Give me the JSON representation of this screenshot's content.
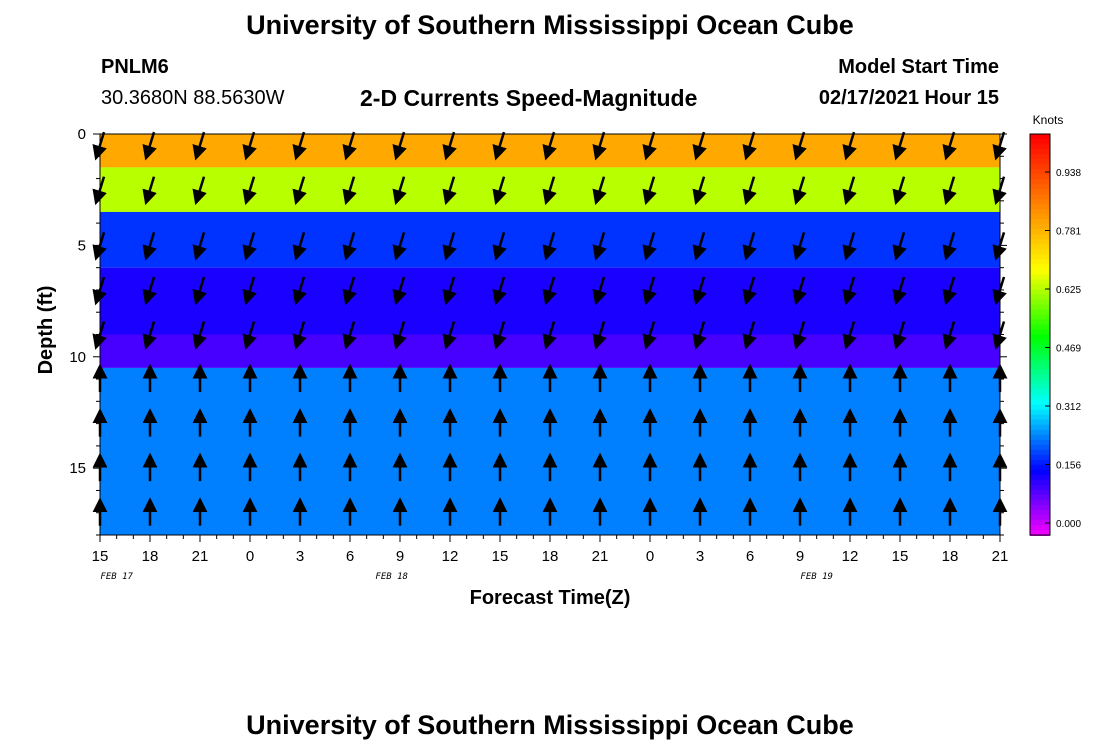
{
  "header": {
    "title": "University of Southern Mississippi Ocean Cube",
    "station_id": "PNLM6",
    "coordinates": "30.3680N 88.5630W",
    "subtitle": "2-D Currents Speed-Magnitude",
    "model_label": "Model Start Time",
    "model_value": "02/17/2021 Hour 15"
  },
  "footer": {
    "title": "University of Southern Mississippi Ocean Cube"
  },
  "chart_data": {
    "type": "heatmap",
    "xlabel": "Forecast Time(Z)",
    "ylabel": "Depth (ft)",
    "x_ticks": [
      "15",
      "18",
      "21",
      "0",
      "3",
      "6",
      "9",
      "12",
      "15",
      "18",
      "21",
      "0",
      "3",
      "6",
      "9",
      "12",
      "15",
      "18",
      "21"
    ],
    "date_labels": [
      {
        "text": "FEB 17",
        "at_hour": 1
      },
      {
        "text": "FEB 18",
        "at_hour": 17.5
      },
      {
        "text": "FEB 19",
        "at_hour": 43
      }
    ],
    "x_range_hours": [
      0,
      54
    ],
    "y_ticks": [
      0,
      5,
      10,
      15
    ],
    "ylim": [
      0,
      18
    ],
    "colorbar": {
      "unit": "Knots",
      "labels": [
        "0.938",
        "0.781",
        "0.625",
        "0.469",
        "0.312",
        "0.156",
        "0.000"
      ],
      "stops": [
        "#ff00ff",
        "#0000ff",
        "#00ffff",
        "#00ff00",
        "#ffff00",
        "#ff8000",
        "#ff0000"
      ]
    },
    "layers": [
      {
        "depth_bottom": 1.5,
        "speed": 0.78
      },
      {
        "depth_bottom": 3.5,
        "speed": 0.62
      },
      {
        "depth_bottom": 6.0,
        "speed": 0.2
      },
      {
        "depth_bottom": 9.0,
        "speed": 0.15
      },
      {
        "depth_bottom": 10.5,
        "speed": 0.12
      },
      {
        "depth_bottom": 18.0,
        "speed": 0.25
      }
    ],
    "vector_depths": [
      0.5,
      2.5,
      5.0,
      7.0,
      9.0,
      11.0,
      13.0,
      15.0,
      17.0
    ]
  }
}
